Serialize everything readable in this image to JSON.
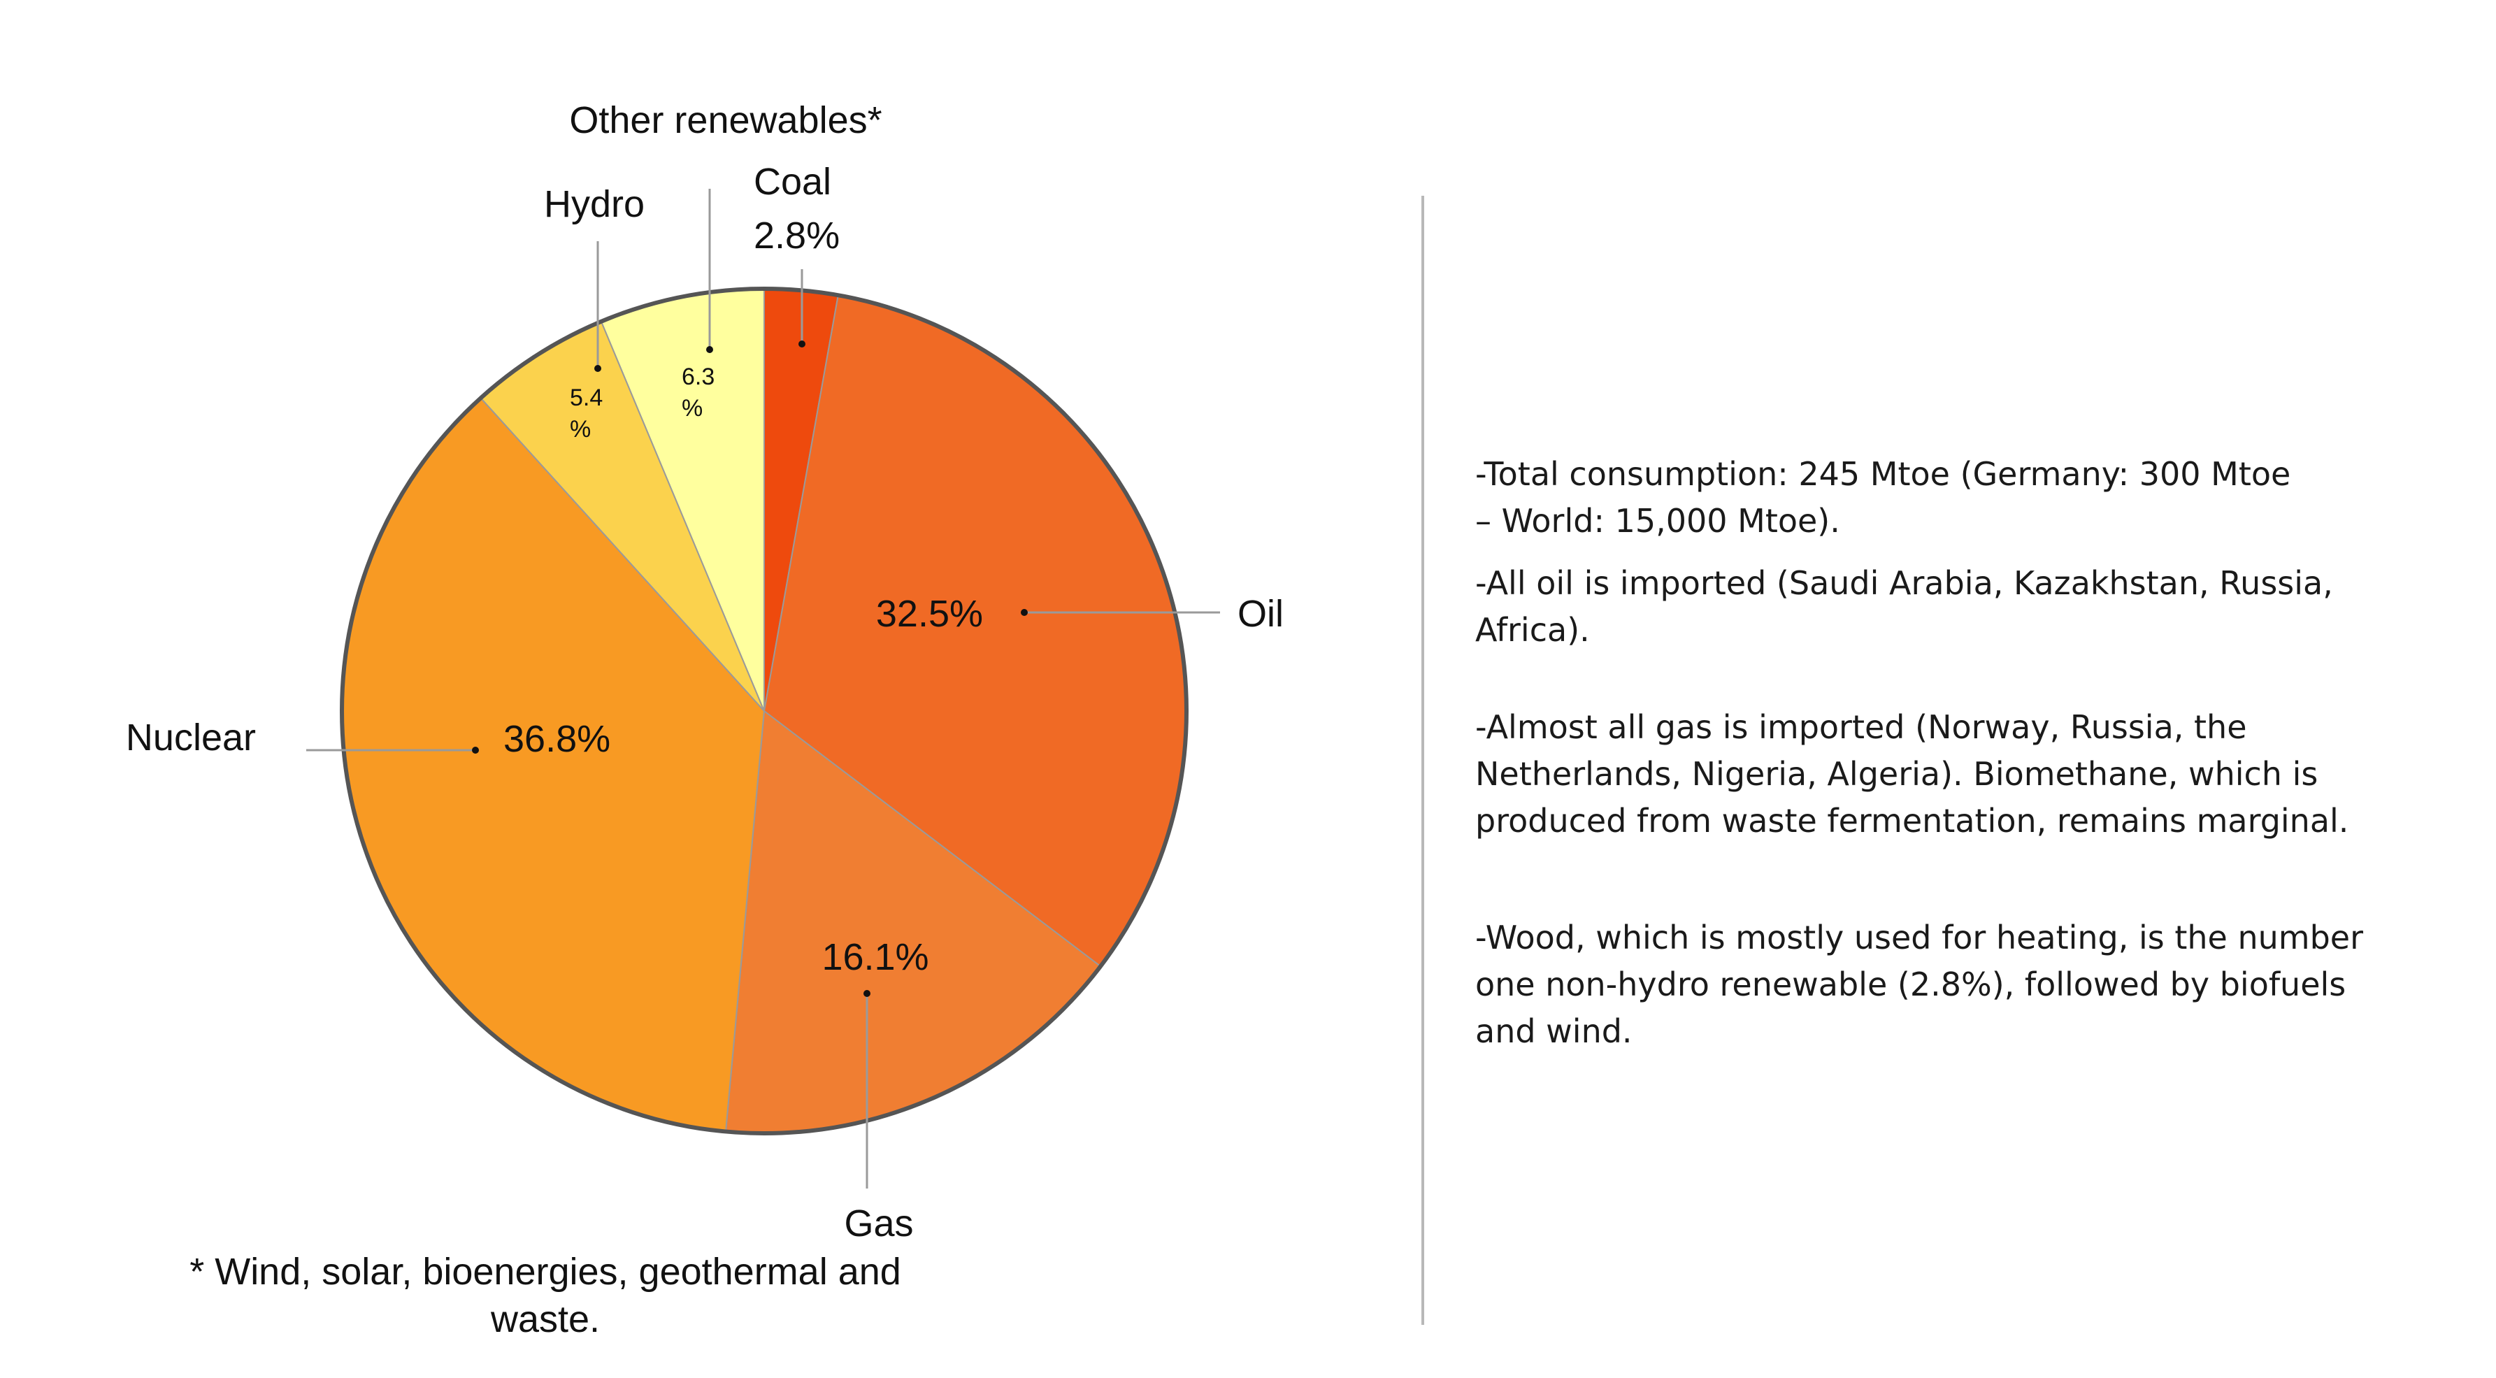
{
  "chart_data": {
    "type": "pie",
    "title": "",
    "slices": [
      {
        "label": "Coal",
        "value": 2.8,
        "value_label": "2.8%",
        "color": "#ee4a0d"
      },
      {
        "label": "Oil",
        "value": 32.5,
        "value_label": "32.5%",
        "color": "#f06a25"
      },
      {
        "label": "Gas",
        "value": 16.1,
        "value_label": "16.1%",
        "color": "#f07e32"
      },
      {
        "label": "Nuclear",
        "value": 36.8,
        "value_label": "36.8%",
        "color": "#f89a23"
      },
      {
        "label": "Hydro",
        "value": 5.4,
        "value_label_lines": [
          "5.4",
          "%"
        ],
        "color": "#fbd24d"
      },
      {
        "label": "Other renewables*",
        "value": 6.3,
        "value_label_lines": [
          "6.3",
          "%"
        ],
        "color": "#ffff9e"
      }
    ],
    "footnote_lines": [
      "* Wind, solar, bioenergies, geothermal and",
      "waste."
    ]
  },
  "notes": [
    [
      "-Total consumption: 245 Mtoe (Germany: 300 Mtoe",
      "– World: 15,000 Mtoe)."
    ],
    [
      "-All oil is imported (Saudi Arabia, Kazakhstan, Russia,",
      "Africa)."
    ],
    [
      "-Almost all gas is imported (Norway, Russia, the",
      "Netherlands, Nigeria, Algeria). Biomethane, which is",
      "produced from waste fermentation, remains marginal."
    ],
    [
      "-Wood, which is mostly used for heating, is the number",
      "one non-hydro renewable (2.8%), followed by biofuels",
      "and wind."
    ]
  ]
}
